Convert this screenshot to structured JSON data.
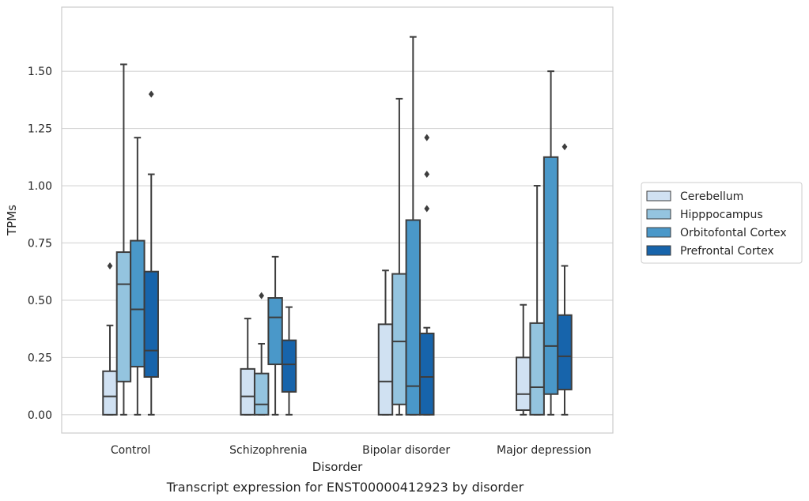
{
  "chart_data": {
    "type": "box",
    "caption": "Transcript expression for ENST00000412923 by disorder",
    "xlabel": "Disorder",
    "ylabel": "TPMs",
    "ylim": [
      -0.08,
      1.78
    ],
    "yticks": [
      0.0,
      0.25,
      0.5,
      0.75,
      1.0,
      1.25,
      1.5
    ],
    "ytick_labels": [
      "0.00",
      "0.25",
      "0.50",
      "0.75",
      "1.00",
      "1.25",
      "1.50"
    ],
    "categories": [
      "Control",
      "Schizophrenia",
      "Bipolar disorder",
      "Major depression"
    ],
    "grid": "horizontal",
    "legend_position": "right, outside plot",
    "series": [
      {
        "name": "Cerebellum",
        "color": "#d0e1f2",
        "boxes": [
          {
            "whislo": 0.0,
            "q1": 0.0,
            "med": 0.08,
            "q3": 0.19,
            "whishi": 0.39,
            "fliers": [
              0.65
            ]
          },
          {
            "whislo": 0.0,
            "q1": 0.0,
            "med": 0.08,
            "q3": 0.2,
            "whishi": 0.42,
            "fliers": []
          },
          {
            "whislo": 0.0,
            "q1": 0.0,
            "med": 0.145,
            "q3": 0.395,
            "whishi": 0.63,
            "fliers": []
          },
          {
            "whislo": 0.0,
            "q1": 0.02,
            "med": 0.09,
            "q3": 0.25,
            "whishi": 0.48,
            "fliers": []
          }
        ]
      },
      {
        "name": "Hipppocampus",
        "color": "#94c4df",
        "boxes": [
          {
            "whislo": 0.0,
            "q1": 0.145,
            "med": 0.57,
            "q3": 0.71,
            "whishi": 1.53,
            "fliers": []
          },
          {
            "whislo": 0.0,
            "q1": 0.0,
            "med": 0.045,
            "q3": 0.18,
            "whishi": 0.31,
            "fliers": [
              0.52
            ]
          },
          {
            "whislo": 0.0,
            "q1": 0.045,
            "med": 0.32,
            "q3": 0.615,
            "whishi": 1.38,
            "fliers": []
          },
          {
            "whislo": 0.0,
            "q1": 0.0,
            "med": 0.12,
            "q3": 0.4,
            "whishi": 1.0,
            "fliers": []
          }
        ]
      },
      {
        "name": "Orbitofontal Cortex",
        "color": "#4a98c9",
        "boxes": [
          {
            "whislo": 0.0,
            "q1": 0.21,
            "med": 0.46,
            "q3": 0.76,
            "whishi": 1.21,
            "fliers": []
          },
          {
            "whislo": 0.0,
            "q1": 0.22,
            "med": 0.425,
            "q3": 0.51,
            "whishi": 0.69,
            "fliers": []
          },
          {
            "whislo": 0.0,
            "q1": 0.0,
            "med": 0.125,
            "q3": 0.85,
            "whishi": 1.65,
            "fliers": []
          },
          {
            "whislo": 0.0,
            "q1": 0.09,
            "med": 0.3,
            "q3": 1.125,
            "whishi": 1.5,
            "fliers": []
          }
        ]
      },
      {
        "name": "Prefrontal Cortex",
        "color": "#1764ab",
        "boxes": [
          {
            "whislo": 0.0,
            "q1": 0.165,
            "med": 0.28,
            "q3": 0.625,
            "whishi": 1.05,
            "fliers": [
              1.4
            ]
          },
          {
            "whislo": 0.0,
            "q1": 0.1,
            "med": 0.22,
            "q3": 0.325,
            "whishi": 0.47,
            "fliers": []
          },
          {
            "whislo": 0.0,
            "q1": 0.0,
            "med": 0.165,
            "q3": 0.355,
            "whishi": 0.38,
            "fliers": [
              0.9,
              1.05,
              1.21
            ]
          },
          {
            "whislo": 0.0,
            "q1": 0.11,
            "med": 0.255,
            "q3": 0.435,
            "whishi": 0.65,
            "fliers": [
              1.17
            ]
          }
        ]
      }
    ]
  }
}
